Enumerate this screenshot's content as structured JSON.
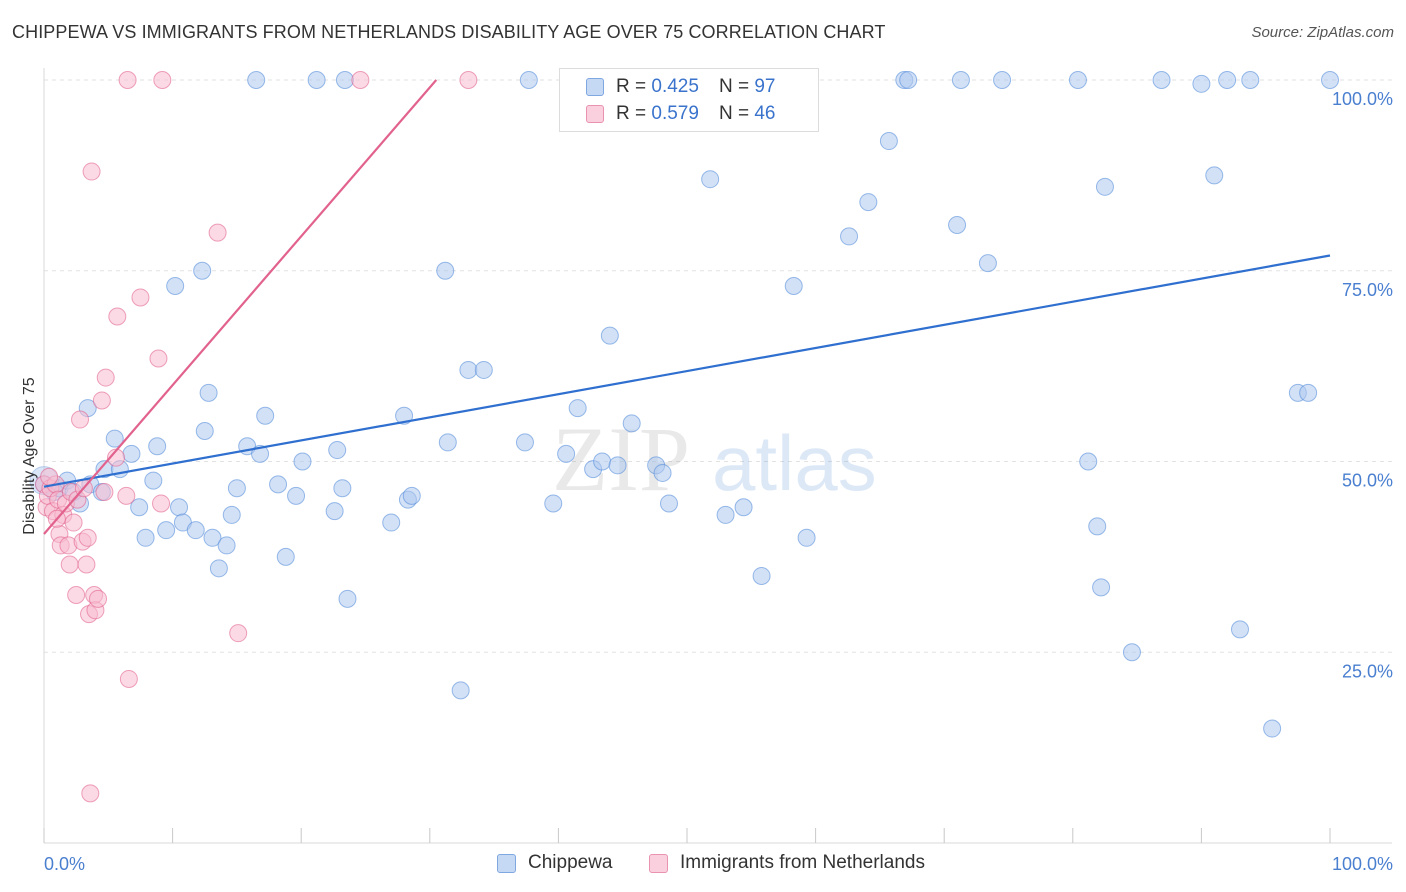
{
  "title": "CHIPPEWA VS IMMIGRANTS FROM NETHERLANDS DISABILITY AGE OVER 75 CORRELATION CHART",
  "source": "Source: ZipAtlas.com",
  "watermark": {
    "zip": "ZIP",
    "atlas": "atlas"
  },
  "legend": {
    "rows": [
      {
        "r_label": "R =",
        "r_value": "0.425",
        "n_label": "N =",
        "n_value": "97",
        "color": "#aec8ef"
      },
      {
        "r_label": "R =",
        "r_value": "0.579",
        "n_label": "N =",
        "n_value": "46",
        "color": "#f7bcd0"
      }
    ]
  },
  "bottom_legend": {
    "items": [
      {
        "label": "Chippewa",
        "color": "#aec8ef"
      },
      {
        "label": "Immigrants from Netherlands",
        "color": "#f7bcd0"
      }
    ]
  },
  "chart_data": {
    "type": "scatter",
    "ylabel": "Disability Age Over 75",
    "xlim": [
      0,
      100
    ],
    "ylim": [
      0,
      100
    ],
    "x_tick_labels": [
      "0.0%",
      "100.0%"
    ],
    "y_tick_labels": [
      "25.0%",
      "50.0%",
      "75.0%",
      "100.0%"
    ],
    "y_ticks": [
      25,
      50,
      75,
      100
    ],
    "grid": true,
    "legend_position": "top-center",
    "series": [
      {
        "name": "Chippewa",
        "color": "#4a86d8",
        "fill": "#aec8ef",
        "trend": {
          "x": [
            0,
            100
          ],
          "y": [
            46.7,
            77.0
          ]
        },
        "points": [
          [
            0,
            47
          ],
          [
            0.8,
            46
          ],
          [
            1.2,
            46.5
          ],
          [
            1.8,
            47.5
          ],
          [
            2.3,
            46
          ],
          [
            2.8,
            44.5
          ],
          [
            3.4,
            57
          ],
          [
            3.6,
            47
          ],
          [
            4.5,
            46
          ],
          [
            4.7,
            49
          ],
          [
            5.5,
            53
          ],
          [
            5.9,
            49
          ],
          [
            6.8,
            51
          ],
          [
            7.4,
            44
          ],
          [
            7.9,
            40
          ],
          [
            8.5,
            47.5
          ],
          [
            8.8,
            52
          ],
          [
            9.5,
            41
          ],
          [
            10.2,
            73
          ],
          [
            10.5,
            44
          ],
          [
            10.8,
            42
          ],
          [
            11.8,
            41
          ],
          [
            12.3,
            75
          ],
          [
            12.5,
            54
          ],
          [
            12.8,
            59
          ],
          [
            13.1,
            40
          ],
          [
            13.6,
            36
          ],
          [
            14.2,
            39
          ],
          [
            14.6,
            43
          ],
          [
            15,
            46.5
          ],
          [
            15.8,
            52
          ],
          [
            16.5,
            100
          ],
          [
            16.8,
            51
          ],
          [
            17.2,
            56
          ],
          [
            18.2,
            47
          ],
          [
            18.8,
            37.5
          ],
          [
            19.6,
            45.5
          ],
          [
            20.1,
            50
          ],
          [
            21.2,
            100
          ],
          [
            22.6,
            43.5
          ],
          [
            22.8,
            51.5
          ],
          [
            23.2,
            46.5
          ],
          [
            23.6,
            32
          ],
          [
            23.4,
            100
          ],
          [
            27,
            42
          ],
          [
            28,
            56
          ],
          [
            28.3,
            45
          ],
          [
            28.6,
            45.5
          ],
          [
            31.2,
            75
          ],
          [
            31.4,
            52.5
          ],
          [
            32.4,
            20
          ],
          [
            33,
            62
          ],
          [
            34.2,
            62
          ],
          [
            37.4,
            52.5
          ],
          [
            37.7,
            100
          ],
          [
            39.6,
            44.5
          ],
          [
            40.6,
            51
          ],
          [
            41.5,
            57
          ],
          [
            42.7,
            49
          ],
          [
            43.4,
            50
          ],
          [
            44,
            66.5
          ],
          [
            44.6,
            49.5
          ],
          [
            45.7,
            55
          ],
          [
            47.6,
            49.5
          ],
          [
            48.1,
            48.5
          ],
          [
            48.6,
            44.5
          ],
          [
            51.8,
            87
          ],
          [
            53,
            43
          ],
          [
            54.4,
            44
          ],
          [
            55.8,
            35
          ],
          [
            58.3,
            73
          ],
          [
            59.3,
            40
          ],
          [
            62.6,
            79.5
          ],
          [
            64.1,
            84
          ],
          [
            65.7,
            92
          ],
          [
            66.9,
            100
          ],
          [
            67.2,
            100
          ],
          [
            71,
            81
          ],
          [
            71.3,
            100
          ],
          [
            73.4,
            76
          ],
          [
            74.5,
            100
          ],
          [
            80.4,
            100
          ],
          [
            81.2,
            50
          ],
          [
            81.9,
            41.5
          ],
          [
            82.2,
            33.5
          ],
          [
            82.5,
            86
          ],
          [
            84.6,
            25
          ],
          [
            86.9,
            100
          ],
          [
            90,
            99.5
          ],
          [
            91,
            87.5
          ],
          [
            92,
            100
          ],
          [
            93.8,
            100
          ],
          [
            93,
            28
          ],
          [
            95.5,
            15
          ],
          [
            97.5,
            59
          ],
          [
            98.3,
            59
          ],
          [
            100,
            100
          ]
        ]
      },
      {
        "name": "Immigrants from Netherlands",
        "color": "#e05a86",
        "fill": "#f7bcd0",
        "trend": {
          "x": [
            0,
            30.5
          ],
          "y": [
            40.5,
            100
          ]
        },
        "points": [
          [
            0,
            47
          ],
          [
            0.2,
            44
          ],
          [
            0.3,
            45.5
          ],
          [
            0.5,
            46.5
          ],
          [
            0.7,
            43.5
          ],
          [
            0.9,
            47
          ],
          [
            1.1,
            45
          ],
          [
            1.2,
            40.5
          ],
          [
            1.3,
            39
          ],
          [
            1.5,
            43
          ],
          [
            1.7,
            44.5
          ],
          [
            1.9,
            39
          ],
          [
            2.0,
            36.5
          ],
          [
            2.1,
            46
          ],
          [
            2.3,
            42
          ],
          [
            2.5,
            32.5
          ],
          [
            2.6,
            45
          ],
          [
            2.8,
            55.5
          ],
          [
            3.0,
            39.5
          ],
          [
            3.1,
            46.5
          ],
          [
            3.3,
            36.5
          ],
          [
            3.4,
            40
          ],
          [
            3.5,
            30
          ],
          [
            3.6,
            6.5
          ],
          [
            3.7,
            88
          ],
          [
            3.9,
            32.5
          ],
          [
            4.0,
            30.5
          ],
          [
            4.2,
            32
          ],
          [
            4.5,
            58
          ],
          [
            4.7,
            46
          ],
          [
            4.8,
            61
          ],
          [
            5.6,
            50.5
          ],
          [
            5.7,
            69
          ],
          [
            6.4,
            45.5
          ],
          [
            6.6,
            21.5
          ],
          [
            6.5,
            100
          ],
          [
            7.5,
            71.5
          ],
          [
            8.9,
            63.5
          ],
          [
            9.1,
            44.5
          ],
          [
            9.2,
            100
          ],
          [
            13.5,
            80
          ],
          [
            15.1,
            27.5
          ],
          [
            24.6,
            100
          ],
          [
            33,
            100
          ],
          [
            0.4,
            48
          ],
          [
            1.0,
            42.5
          ]
        ]
      }
    ]
  }
}
